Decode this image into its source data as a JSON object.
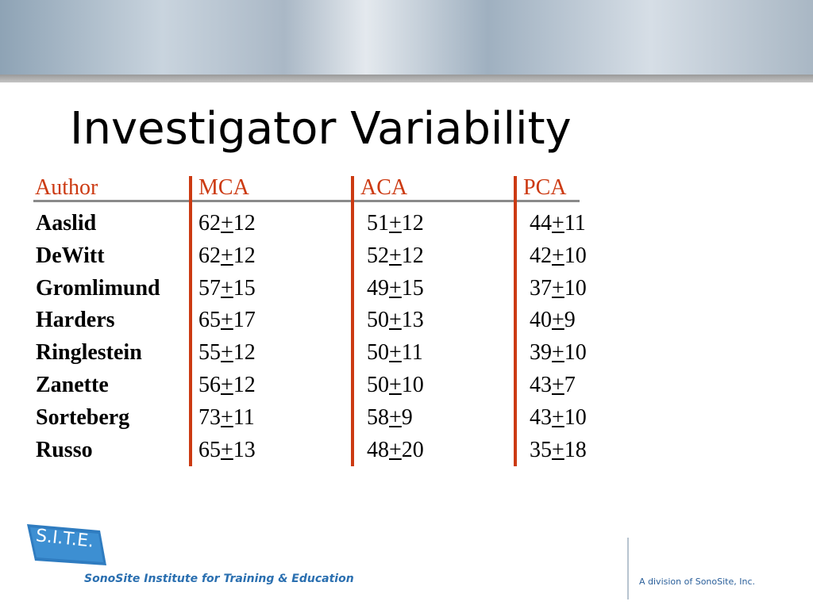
{
  "title": "Investigator Variability",
  "table": {
    "columns": [
      "Author",
      "MCA",
      "ACA",
      "PCA"
    ],
    "sign": "+",
    "rows": [
      {
        "author": "Aaslid",
        "cells": [
          {
            "mean": 62,
            "sd": 12
          },
          {
            "mean": 51,
            "sd": 12
          },
          {
            "mean": 44,
            "sd": 11
          }
        ]
      },
      {
        "author": "DeWitt",
        "cells": [
          {
            "mean": 62,
            "sd": 12
          },
          {
            "mean": 52,
            "sd": 12
          },
          {
            "mean": 42,
            "sd": 10
          }
        ]
      },
      {
        "author": "Gromlimund",
        "cells": [
          {
            "mean": 57,
            "sd": 15
          },
          {
            "mean": 49,
            "sd": 15
          },
          {
            "mean": 37,
            "sd": 10
          }
        ]
      },
      {
        "author": "Harders",
        "cells": [
          {
            "mean": 65,
            "sd": 17
          },
          {
            "mean": 50,
            "sd": 13
          },
          {
            "mean": 40,
            "sd": 9
          }
        ]
      },
      {
        "author": "Ringlestein",
        "cells": [
          {
            "mean": 55,
            "sd": 12
          },
          {
            "mean": 50,
            "sd": 11
          },
          {
            "mean": 39,
            "sd": 10
          }
        ]
      },
      {
        "author": "Zanette",
        "cells": [
          {
            "mean": 56,
            "sd": 12
          },
          {
            "mean": 50,
            "sd": 10
          },
          {
            "mean": 43,
            "sd": 7
          }
        ]
      },
      {
        "author": "Sorteberg",
        "cells": [
          {
            "mean": 73,
            "sd": 11
          },
          {
            "mean": 58,
            "sd": 9
          },
          {
            "mean": 43,
            "sd": 10
          }
        ]
      },
      {
        "author": "Russo",
        "cells": [
          {
            "mean": 65,
            "sd": 13
          },
          {
            "mean": 48,
            "sd": 20
          },
          {
            "mean": 35,
            "sd": 18
          }
        ]
      }
    ]
  },
  "footer": {
    "logo": "S.I.T.E.",
    "institute": "SonoSite Institute for Training & Education",
    "division": "A division of SonoSite, Inc."
  }
}
